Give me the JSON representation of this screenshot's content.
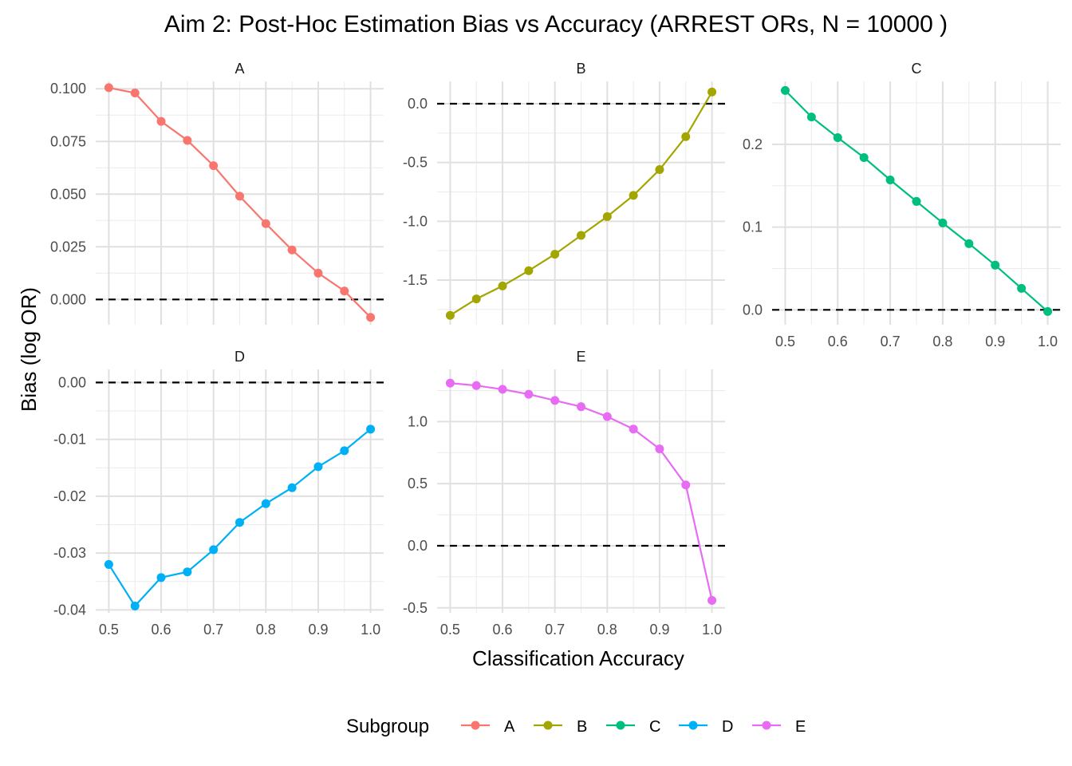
{
  "chart_data": {
    "type": "line",
    "title": "Aim 2: Post-Hoc Estimation Bias vs Accuracy (ARREST ORs, N = 10000 )",
    "xlabel": "Classification Accuracy",
    "ylabel": "Bias (log OR)",
    "legend": {
      "title": "Subgroup",
      "position": "bottom"
    },
    "reference_line": {
      "y": 0,
      "style": "dashed"
    },
    "x": [
      0.5,
      0.55,
      0.6,
      0.65,
      0.7,
      0.75,
      0.8,
      0.85,
      0.9,
      0.95,
      1.0
    ],
    "x_ticks": [
      "0.5",
      "0.6",
      "0.7",
      "0.8",
      "0.9",
      "1.0"
    ],
    "panels": [
      {
        "name": "A",
        "color": "#F8766D",
        "ylim": [
          -0.012,
          0.1035
        ],
        "y_ticks": [
          "0.000",
          "0.025",
          "0.050",
          "0.075",
          "0.100"
        ],
        "y_tick_values": [
          0,
          0.025,
          0.05,
          0.075,
          0.1
        ],
        "values": [
          0.1005,
          0.098,
          0.0845,
          0.0755,
          0.0635,
          0.049,
          0.036,
          0.0235,
          0.0125,
          0.004,
          -0.0085
        ]
      },
      {
        "name": "B",
        "color": "#A3A500",
        "ylim": [
          -1.88,
          0.19
        ],
        "y_ticks": [
          "-1.5",
          "-1.0",
          "-0.5",
          "0.0"
        ],
        "y_tick_values": [
          -1.5,
          -1.0,
          -0.5,
          0.0
        ],
        "values": [
          -1.8,
          -1.66,
          -1.55,
          -1.42,
          -1.28,
          -1.12,
          -0.96,
          -0.78,
          -0.56,
          -0.28,
          0.1
        ]
      },
      {
        "name": "C",
        "color": "#00BF7D",
        "ylim": [
          -0.018,
          0.276
        ],
        "y_ticks": [
          "0.0",
          "0.1",
          "0.2"
        ],
        "y_tick_values": [
          0,
          0.1,
          0.2
        ],
        "values": [
          0.265,
          0.233,
          0.208,
          0.184,
          0.157,
          0.131,
          0.105,
          0.08,
          0.054,
          0.026,
          -0.002
        ]
      },
      {
        "name": "D",
        "color": "#00B0F6",
        "ylim": [
          -0.0405,
          0.0023
        ],
        "y_ticks": [
          "-0.04",
          "-0.03",
          "-0.02",
          "-0.01",
          "0.00"
        ],
        "y_tick_values": [
          -0.04,
          -0.03,
          -0.02,
          -0.01,
          0.0
        ],
        "values": [
          -0.032,
          -0.0393,
          -0.0343,
          -0.0333,
          -0.0294,
          -0.0246,
          -0.0213,
          -0.0185,
          -0.0148,
          -0.012,
          -0.0082
        ]
      },
      {
        "name": "E",
        "color": "#E76BF3",
        "ylim": [
          -0.54,
          1.42
        ],
        "y_ticks": [
          "-0.5",
          "0.0",
          "0.5",
          "1.0"
        ],
        "y_tick_values": [
          -0.5,
          0.0,
          0.5,
          1.0
        ],
        "values": [
          1.31,
          1.29,
          1.26,
          1.22,
          1.17,
          1.12,
          1.04,
          0.94,
          0.78,
          0.49,
          -0.44
        ]
      }
    ]
  }
}
